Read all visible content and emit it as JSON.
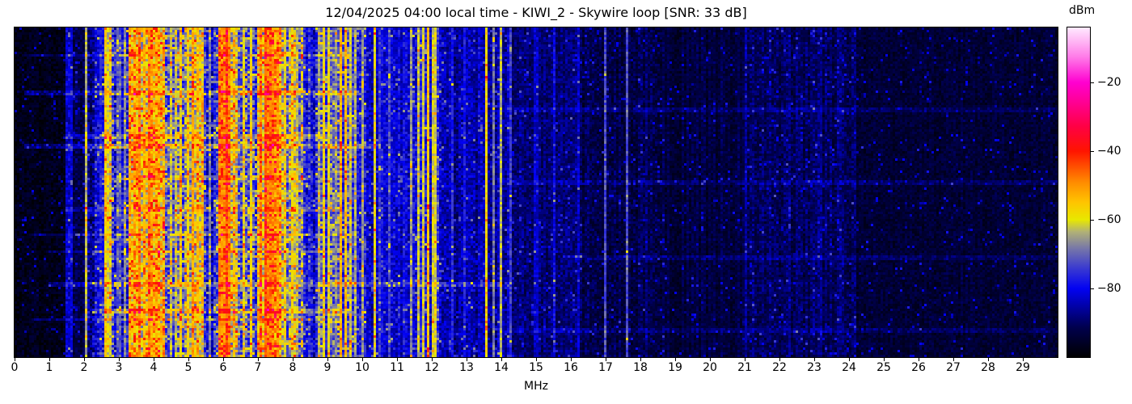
{
  "chart_data": {
    "type": "heatmap",
    "title": "12/04/2025 04:00 local time - KIWI_2 - Skywire loop [SNR: 33 dB]",
    "xlabel": "MHz",
    "x_range": [
      0,
      30
    ],
    "x_ticks": [
      0,
      1,
      2,
      3,
      4,
      5,
      6,
      7,
      8,
      9,
      10,
      11,
      12,
      13,
      14,
      15,
      16,
      17,
      18,
      19,
      20,
      21,
      22,
      23,
      24,
      25,
      26,
      27,
      28,
      29
    ],
    "grid": false,
    "colorbar": {
      "label": "dBm",
      "vmin": -100,
      "vmax": -4,
      "ticks": [
        {
          "value": -20,
          "label": "−20"
        },
        {
          "value": -40,
          "label": "−40"
        },
        {
          "value": -60,
          "label": "−60"
        },
        {
          "value": -80,
          "label": "−80"
        }
      ],
      "stops": [
        [
          0.0,
          "#000000"
        ],
        [
          0.09,
          "#00004d"
        ],
        [
          0.208,
          "#0202f2"
        ],
        [
          0.27,
          "#3a3ad0"
        ],
        [
          0.33,
          "#7777a8"
        ],
        [
          0.38,
          "#b0b077"
        ],
        [
          0.417,
          "#e8e800"
        ],
        [
          0.47,
          "#ffc400"
        ],
        [
          0.53,
          "#ff8c00"
        ],
        [
          0.625,
          "#ff1400"
        ],
        [
          0.7,
          "#ff0044"
        ],
        [
          0.77,
          "#ff0090"
        ],
        [
          0.833,
          "#ff00d0"
        ],
        [
          0.91,
          "#ff7ae8"
        ],
        [
          1.0,
          "#ffeaff"
        ]
      ]
    },
    "noise_profile": {
      "columns": [
        "f_start_mhz",
        "f_end_mhz",
        "level_dbm",
        "pixel_jitter_db",
        "column_jitter_db",
        "speckle_prob"
      ],
      "rows": [
        [
          0.0,
          1.5,
          -97,
          3,
          1,
          0.04
        ],
        [
          1.5,
          1.68,
          -84,
          5,
          2,
          0.05
        ],
        [
          1.68,
          2.0,
          -93,
          4,
          2,
          0.05
        ],
        [
          2.0,
          2.3,
          -88,
          6,
          3,
          0.08
        ],
        [
          2.3,
          2.55,
          -82,
          6,
          3,
          0.1
        ],
        [
          2.55,
          2.8,
          -61,
          7,
          4,
          0.1
        ],
        [
          2.8,
          3.3,
          -76,
          9,
          6,
          0.15
        ],
        [
          3.3,
          4.35,
          -59,
          9,
          7,
          0.2
        ],
        [
          4.35,
          4.95,
          -72,
          9,
          6,
          0.15
        ],
        [
          4.95,
          5.45,
          -62,
          8,
          6,
          0.15
        ],
        [
          5.45,
          5.85,
          -78,
          8,
          5,
          0.12
        ],
        [
          5.85,
          6.45,
          -56,
          9,
          7,
          0.2
        ],
        [
          6.45,
          6.95,
          -70,
          9,
          6,
          0.15
        ],
        [
          6.95,
          7.65,
          -57,
          9,
          7,
          0.2
        ],
        [
          7.65,
          8.3,
          -66,
          9,
          6,
          0.15
        ],
        [
          8.3,
          8.65,
          -80,
          7,
          4,
          0.1
        ],
        [
          8.65,
          9.6,
          -73,
          8,
          5,
          0.12
        ],
        [
          9.6,
          10.1,
          -78,
          7,
          4,
          0.1
        ],
        [
          10.1,
          11.35,
          -82,
          5,
          3,
          0.08
        ],
        [
          11.35,
          12.25,
          -79,
          6,
          4,
          0.1
        ],
        [
          12.25,
          13.4,
          -85,
          5,
          3,
          0.06
        ],
        [
          13.4,
          14.3,
          -84,
          5,
          3,
          0.06
        ],
        [
          14.3,
          16.3,
          -89,
          4,
          2,
          0.05
        ],
        [
          16.3,
          18.6,
          -92,
          4,
          2,
          0.04
        ],
        [
          18.6,
          21.0,
          -93,
          3,
          2,
          0.04
        ],
        [
          21.0,
          24.2,
          -90,
          4,
          3,
          0.05
        ],
        [
          24.2,
          30.0,
          -94,
          3,
          1,
          0.03
        ]
      ]
    },
    "carriers": {
      "columns": [
        "freq_mhz",
        "level_dbm",
        "halfwidth_mhz"
      ],
      "rows": [
        [
          1.61,
          -80,
          0.03
        ],
        [
          2.07,
          -62,
          0.025
        ],
        [
          2.46,
          -75,
          0.02
        ],
        [
          2.62,
          -58,
          0.04
        ],
        [
          2.7,
          -60,
          0.03
        ],
        [
          3.0,
          -68,
          0.02
        ],
        [
          3.2,
          -65,
          0.02
        ],
        [
          3.33,
          -52,
          0.03
        ],
        [
          3.48,
          -55,
          0.03
        ],
        [
          3.6,
          -48,
          0.04
        ],
        [
          3.72,
          -55,
          0.03
        ],
        [
          3.85,
          -46,
          0.04
        ],
        [
          3.95,
          -52,
          0.03
        ],
        [
          4.05,
          -50,
          0.03
        ],
        [
          4.18,
          -55,
          0.03
        ],
        [
          4.47,
          -60,
          0.03
        ],
        [
          4.65,
          -62,
          0.03
        ],
        [
          4.77,
          -57,
          0.03
        ],
        [
          5.0,
          -57,
          0.03
        ],
        [
          5.13,
          -52,
          0.04
        ],
        [
          5.3,
          -56,
          0.03
        ],
        [
          5.62,
          -68,
          0.02
        ],
        [
          5.9,
          -50,
          0.03
        ],
        [
          6.0,
          -46,
          0.04
        ],
        [
          6.1,
          -44,
          0.04
        ],
        [
          6.19,
          -48,
          0.03
        ],
        [
          6.6,
          -60,
          0.03
        ],
        [
          6.8,
          -58,
          0.03
        ],
        [
          7.1,
          -50,
          0.03
        ],
        [
          7.22,
          -45,
          0.04
        ],
        [
          7.33,
          -44,
          0.04
        ],
        [
          7.44,
          -48,
          0.03
        ],
        [
          7.57,
          -52,
          0.03
        ],
        [
          7.8,
          -56,
          0.03
        ],
        [
          8.0,
          -58,
          0.03
        ],
        [
          8.1,
          -60,
          0.03
        ],
        [
          8.73,
          -62,
          0.02
        ],
        [
          8.9,
          -58,
          0.03
        ],
        [
          9.05,
          -57,
          0.03
        ],
        [
          9.27,
          -63,
          0.02
        ],
        [
          9.4,
          -52,
          0.03
        ],
        [
          9.52,
          -54,
          0.03
        ],
        [
          9.65,
          -60,
          0.02
        ],
        [
          9.8,
          -64,
          0.02
        ],
        [
          10.0,
          -64,
          0.02
        ],
        [
          10.35,
          -58,
          0.02
        ],
        [
          10.52,
          -72,
          0.02
        ],
        [
          10.8,
          -70,
          0.02
        ],
        [
          11.39,
          -64,
          0.02
        ],
        [
          11.6,
          -60,
          0.02
        ],
        [
          11.73,
          -58,
          0.03
        ],
        [
          11.9,
          -54,
          0.03
        ],
        [
          12.07,
          -56,
          0.02
        ],
        [
          12.6,
          -76,
          0.015
        ],
        [
          12.95,
          -77,
          0.015
        ],
        [
          13.57,
          -57,
          0.025
        ],
        [
          13.75,
          -65,
          0.02
        ],
        [
          14.0,
          -62,
          0.02
        ],
        [
          14.3,
          -70,
          0.015
        ],
        [
          15.0,
          -78,
          0.015
        ],
        [
          15.55,
          -76,
          0.015
        ],
        [
          16.2,
          -80,
          0.015
        ],
        [
          17.0,
          -71,
          0.015
        ],
        [
          17.62,
          -72,
          0.02
        ],
        [
          18.2,
          -85,
          0.015
        ],
        [
          21.05,
          -85,
          0.015
        ],
        [
          23.2,
          -87,
          0.015
        ]
      ]
    },
    "bursts": {
      "columns": [
        "time_frac",
        "f_start_mhz",
        "f_end_mhz",
        "boost_db"
      ],
      "rows": [
        [
          0.085,
          0.3,
          9.5,
          7
        ],
        [
          0.2,
          0.3,
          10.0,
          8
        ],
        [
          0.33,
          1.4,
          9.0,
          8
        ],
        [
          0.36,
          0.3,
          10.5,
          9
        ],
        [
          0.455,
          2.5,
          8.5,
          6
        ],
        [
          0.55,
          1.5,
          9.5,
          6
        ],
        [
          0.63,
          0.5,
          10.0,
          7
        ],
        [
          0.68,
          1.0,
          9.0,
          7
        ],
        [
          0.78,
          1.0,
          14.0,
          8
        ],
        [
          0.86,
          2.0,
          9.5,
          9
        ],
        [
          0.885,
          0.5,
          9.0,
          7
        ],
        [
          0.25,
          14.0,
          30.0,
          4
        ],
        [
          0.47,
          14.0,
          30.0,
          4
        ],
        [
          0.7,
          16.0,
          30.0,
          4
        ],
        [
          0.92,
          14.0,
          30.0,
          4
        ]
      ]
    }
  }
}
